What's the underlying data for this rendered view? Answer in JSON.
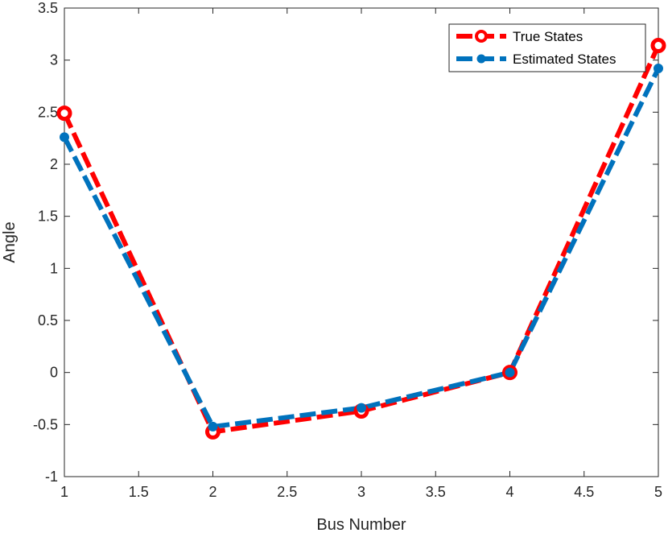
{
  "chart_data": {
    "type": "line",
    "xlabel": "Bus Number",
    "ylabel": "Angle",
    "xlim": [
      1,
      5
    ],
    "ylim": [
      -1,
      3.5
    ],
    "x_ticks": [
      "1",
      "1.5",
      "2",
      "2.5",
      "3",
      "3.5",
      "4",
      "4.5",
      "5"
    ],
    "y_ticks": [
      "-1",
      "-0.5",
      "0",
      "0.5",
      "1",
      "1.5",
      "2",
      "2.5",
      "3",
      "3.5"
    ],
    "grid": false,
    "legend_position": "top-right",
    "x": [
      1,
      2,
      3,
      4,
      5
    ],
    "series": [
      {
        "name": "True States",
        "values": [
          2.49,
          -0.57,
          -0.37,
          0.0,
          3.14
        ],
        "color": "#ff0000",
        "marker": "circle-open",
        "line_style": "dashed"
      },
      {
        "name": "Estimated States",
        "values": [
          2.26,
          -0.52,
          -0.34,
          0.0,
          2.92
        ],
        "color": "#0072bd",
        "marker": "circle-filled",
        "line_style": "dashed"
      }
    ]
  }
}
